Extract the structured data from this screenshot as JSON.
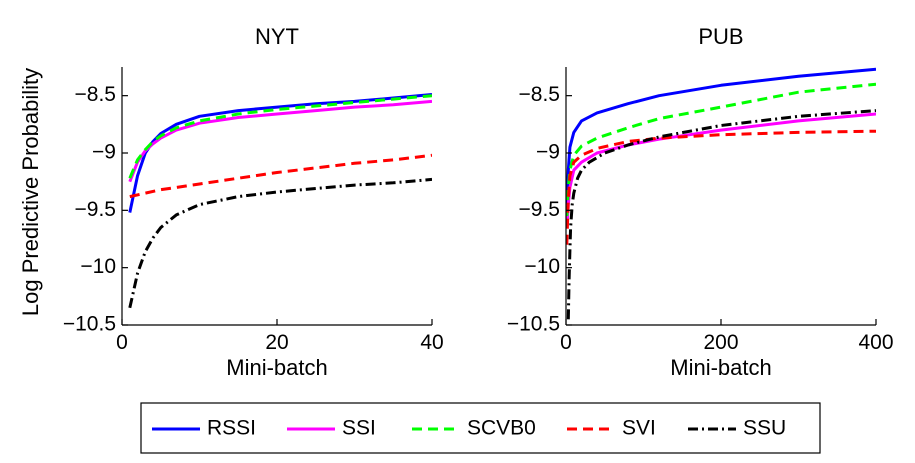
{
  "shared": {
    "ylabel": "Log Predictive Probability"
  },
  "legend": {
    "placement": "bottom",
    "entries": [
      {
        "name": "RSSI",
        "color": "#0000ff",
        "dash": "solid"
      },
      {
        "name": "SSI",
        "color": "#ff00ff",
        "dash": "solid"
      },
      {
        "name": "SCVB0",
        "color": "#00ff00",
        "dash": "dashed"
      },
      {
        "name": "SVI",
        "color": "#ff0000",
        "dash": "dashed"
      },
      {
        "name": "SSU",
        "color": "#000000",
        "dash": "dashdot"
      }
    ]
  },
  "chart_data": [
    {
      "type": "line",
      "title": "NYT",
      "xlabel": "Mini-batch",
      "ylabel": "Log Predictive Probability",
      "xlim": [
        0,
        40
      ],
      "ylim": [
        -10.5,
        -8.25
      ],
      "xticks": [
        0,
        20,
        40
      ],
      "xtick_labels": [
        "0",
        "20",
        "40"
      ],
      "yticks": [
        -10.5,
        -10,
        -9.5,
        -9,
        -8.5
      ],
      "ytick_labels": [
        "-10.5",
        "-10",
        "-9.5",
        "-9",
        "-8.5"
      ],
      "grid": false,
      "series": [
        {
          "name": "RSSI",
          "x": [
            1,
            2,
            3,
            4,
            5,
            7,
            10,
            15,
            20,
            25,
            30,
            35,
            40
          ],
          "y": [
            -9.52,
            -9.2,
            -9.0,
            -8.9,
            -8.83,
            -8.75,
            -8.68,
            -8.63,
            -8.6,
            -8.57,
            -8.55,
            -8.52,
            -8.49
          ]
        },
        {
          "name": "SSI",
          "x": [
            1,
            2,
            3,
            4,
            5,
            7,
            10,
            15,
            20,
            25,
            30,
            35,
            40
          ],
          "y": [
            -9.25,
            -9.08,
            -8.98,
            -8.92,
            -8.87,
            -8.8,
            -8.74,
            -8.69,
            -8.66,
            -8.63,
            -8.6,
            -8.58,
            -8.55
          ]
        },
        {
          "name": "SCVB0",
          "x": [
            1,
            2,
            3,
            4,
            5,
            7,
            10,
            15,
            20,
            25,
            30,
            35,
            40
          ],
          "y": [
            -9.22,
            -9.06,
            -8.97,
            -8.9,
            -8.85,
            -8.78,
            -8.72,
            -8.66,
            -8.62,
            -8.59,
            -8.56,
            -8.53,
            -8.5
          ]
        },
        {
          "name": "SVI",
          "x": [
            1,
            5,
            10,
            15,
            20,
            25,
            30,
            35,
            40
          ],
          "y": [
            -9.38,
            -9.32,
            -9.27,
            -9.22,
            -9.17,
            -9.13,
            -9.09,
            -9.06,
            -9.02
          ]
        },
        {
          "name": "SSU",
          "x": [
            1,
            2,
            3,
            4,
            5,
            7,
            10,
            15,
            20,
            25,
            30,
            35,
            40
          ],
          "y": [
            -10.35,
            -10.05,
            -9.86,
            -9.74,
            -9.65,
            -9.54,
            -9.45,
            -9.38,
            -9.34,
            -9.31,
            -9.28,
            -9.26,
            -9.23
          ]
        }
      ]
    },
    {
      "type": "line",
      "title": "PUB",
      "xlabel": "Mini-batch",
      "ylabel": "",
      "xlim": [
        0,
        400
      ],
      "ylim": [
        -10.5,
        -8.25
      ],
      "xticks": [
        0,
        200,
        400
      ],
      "xtick_labels": [
        "0",
        "200",
        "400"
      ],
      "yticks": [
        -10.5,
        -10,
        -9.5,
        -9,
        -8.5
      ],
      "ytick_labels": [
        "-10.5",
        "-10",
        "-9.5",
        "-9",
        "-8.5"
      ],
      "grid": false,
      "series": [
        {
          "name": "RSSI",
          "x": [
            1,
            3,
            5,
            10,
            20,
            40,
            80,
            120,
            200,
            300,
            400
          ],
          "y": [
            -9.45,
            -9.15,
            -8.95,
            -8.82,
            -8.72,
            -8.65,
            -8.57,
            -8.5,
            -8.41,
            -8.33,
            -8.27
          ]
        },
        {
          "name": "SSI",
          "x": [
            1,
            3,
            5,
            10,
            20,
            40,
            80,
            120,
            200,
            300,
            400
          ],
          "y": [
            -9.65,
            -9.45,
            -9.3,
            -9.15,
            -9.08,
            -9.0,
            -8.93,
            -8.88,
            -8.8,
            -8.72,
            -8.66
          ]
        },
        {
          "name": "SCVB0",
          "x": [
            1,
            3,
            5,
            10,
            20,
            40,
            80,
            120,
            200,
            300,
            400
          ],
          "y": [
            -9.55,
            -9.3,
            -9.15,
            -9.02,
            -8.94,
            -8.87,
            -8.78,
            -8.7,
            -8.6,
            -8.47,
            -8.4
          ]
        },
        {
          "name": "SVI",
          "x": [
            1,
            3,
            5,
            10,
            20,
            40,
            80,
            120,
            200,
            300,
            400
          ],
          "y": [
            -9.8,
            -9.4,
            -9.2,
            -9.08,
            -9.02,
            -8.96,
            -8.9,
            -8.87,
            -8.84,
            -8.82,
            -8.81
          ]
        },
        {
          "name": "SSU",
          "x": [
            3,
            4,
            5,
            6,
            8,
            10,
            15,
            20,
            30,
            50,
            80,
            120,
            200,
            300,
            400
          ],
          "y": [
            -10.45,
            -10.1,
            -9.85,
            -9.65,
            -9.45,
            -9.35,
            -9.22,
            -9.15,
            -9.08,
            -9.0,
            -8.93,
            -8.86,
            -8.76,
            -8.68,
            -8.63
          ]
        }
      ]
    }
  ]
}
